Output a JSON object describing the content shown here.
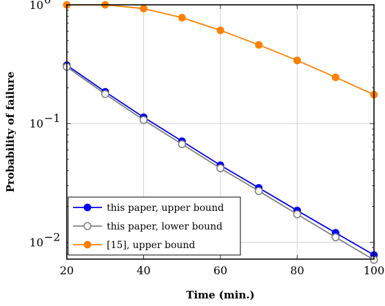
{
  "chart_data": {
    "type": "line",
    "title": "",
    "xlabel": "Time (min.)",
    "ylabel": "Probability of failure",
    "xlim": [
      20,
      100
    ],
    "ylim": [
      0.0072,
      1.0
    ],
    "yscale": "log",
    "grid": true,
    "legend_position": "bottom-left",
    "x_ticks": [
      20,
      40,
      60,
      80,
      100
    ],
    "y_ticks": [
      {
        "value": 1,
        "base": "10",
        "exp": "0"
      },
      {
        "value": 0.1,
        "base": "10",
        "exp": "−1"
      },
      {
        "value": 0.01,
        "base": "10",
        "exp": "−2"
      }
    ],
    "x": [
      20,
      30,
      40,
      50,
      60,
      70,
      80,
      90,
      100
    ],
    "series": [
      {
        "name": "this paper, upper bound",
        "color": "#0000ee",
        "marker": "filled-circle",
        "values": [
          0.31,
          0.185,
          0.113,
          0.071,
          0.0445,
          0.0287,
          0.0185,
          0.012,
          0.0078
        ]
      },
      {
        "name": "this paper, lower bound",
        "color": "#808080",
        "marker": "open-circle",
        "values": [
          0.3,
          0.177,
          0.107,
          0.067,
          0.042,
          0.027,
          0.0172,
          0.011,
          0.0071
        ]
      },
      {
        "name": "[15], upper bound",
        "color": "#ff8000",
        "marker": "filled-circle",
        "values": [
          1.0,
          1.0,
          0.93,
          0.78,
          0.61,
          0.46,
          0.34,
          0.245,
          0.175
        ]
      }
    ]
  }
}
